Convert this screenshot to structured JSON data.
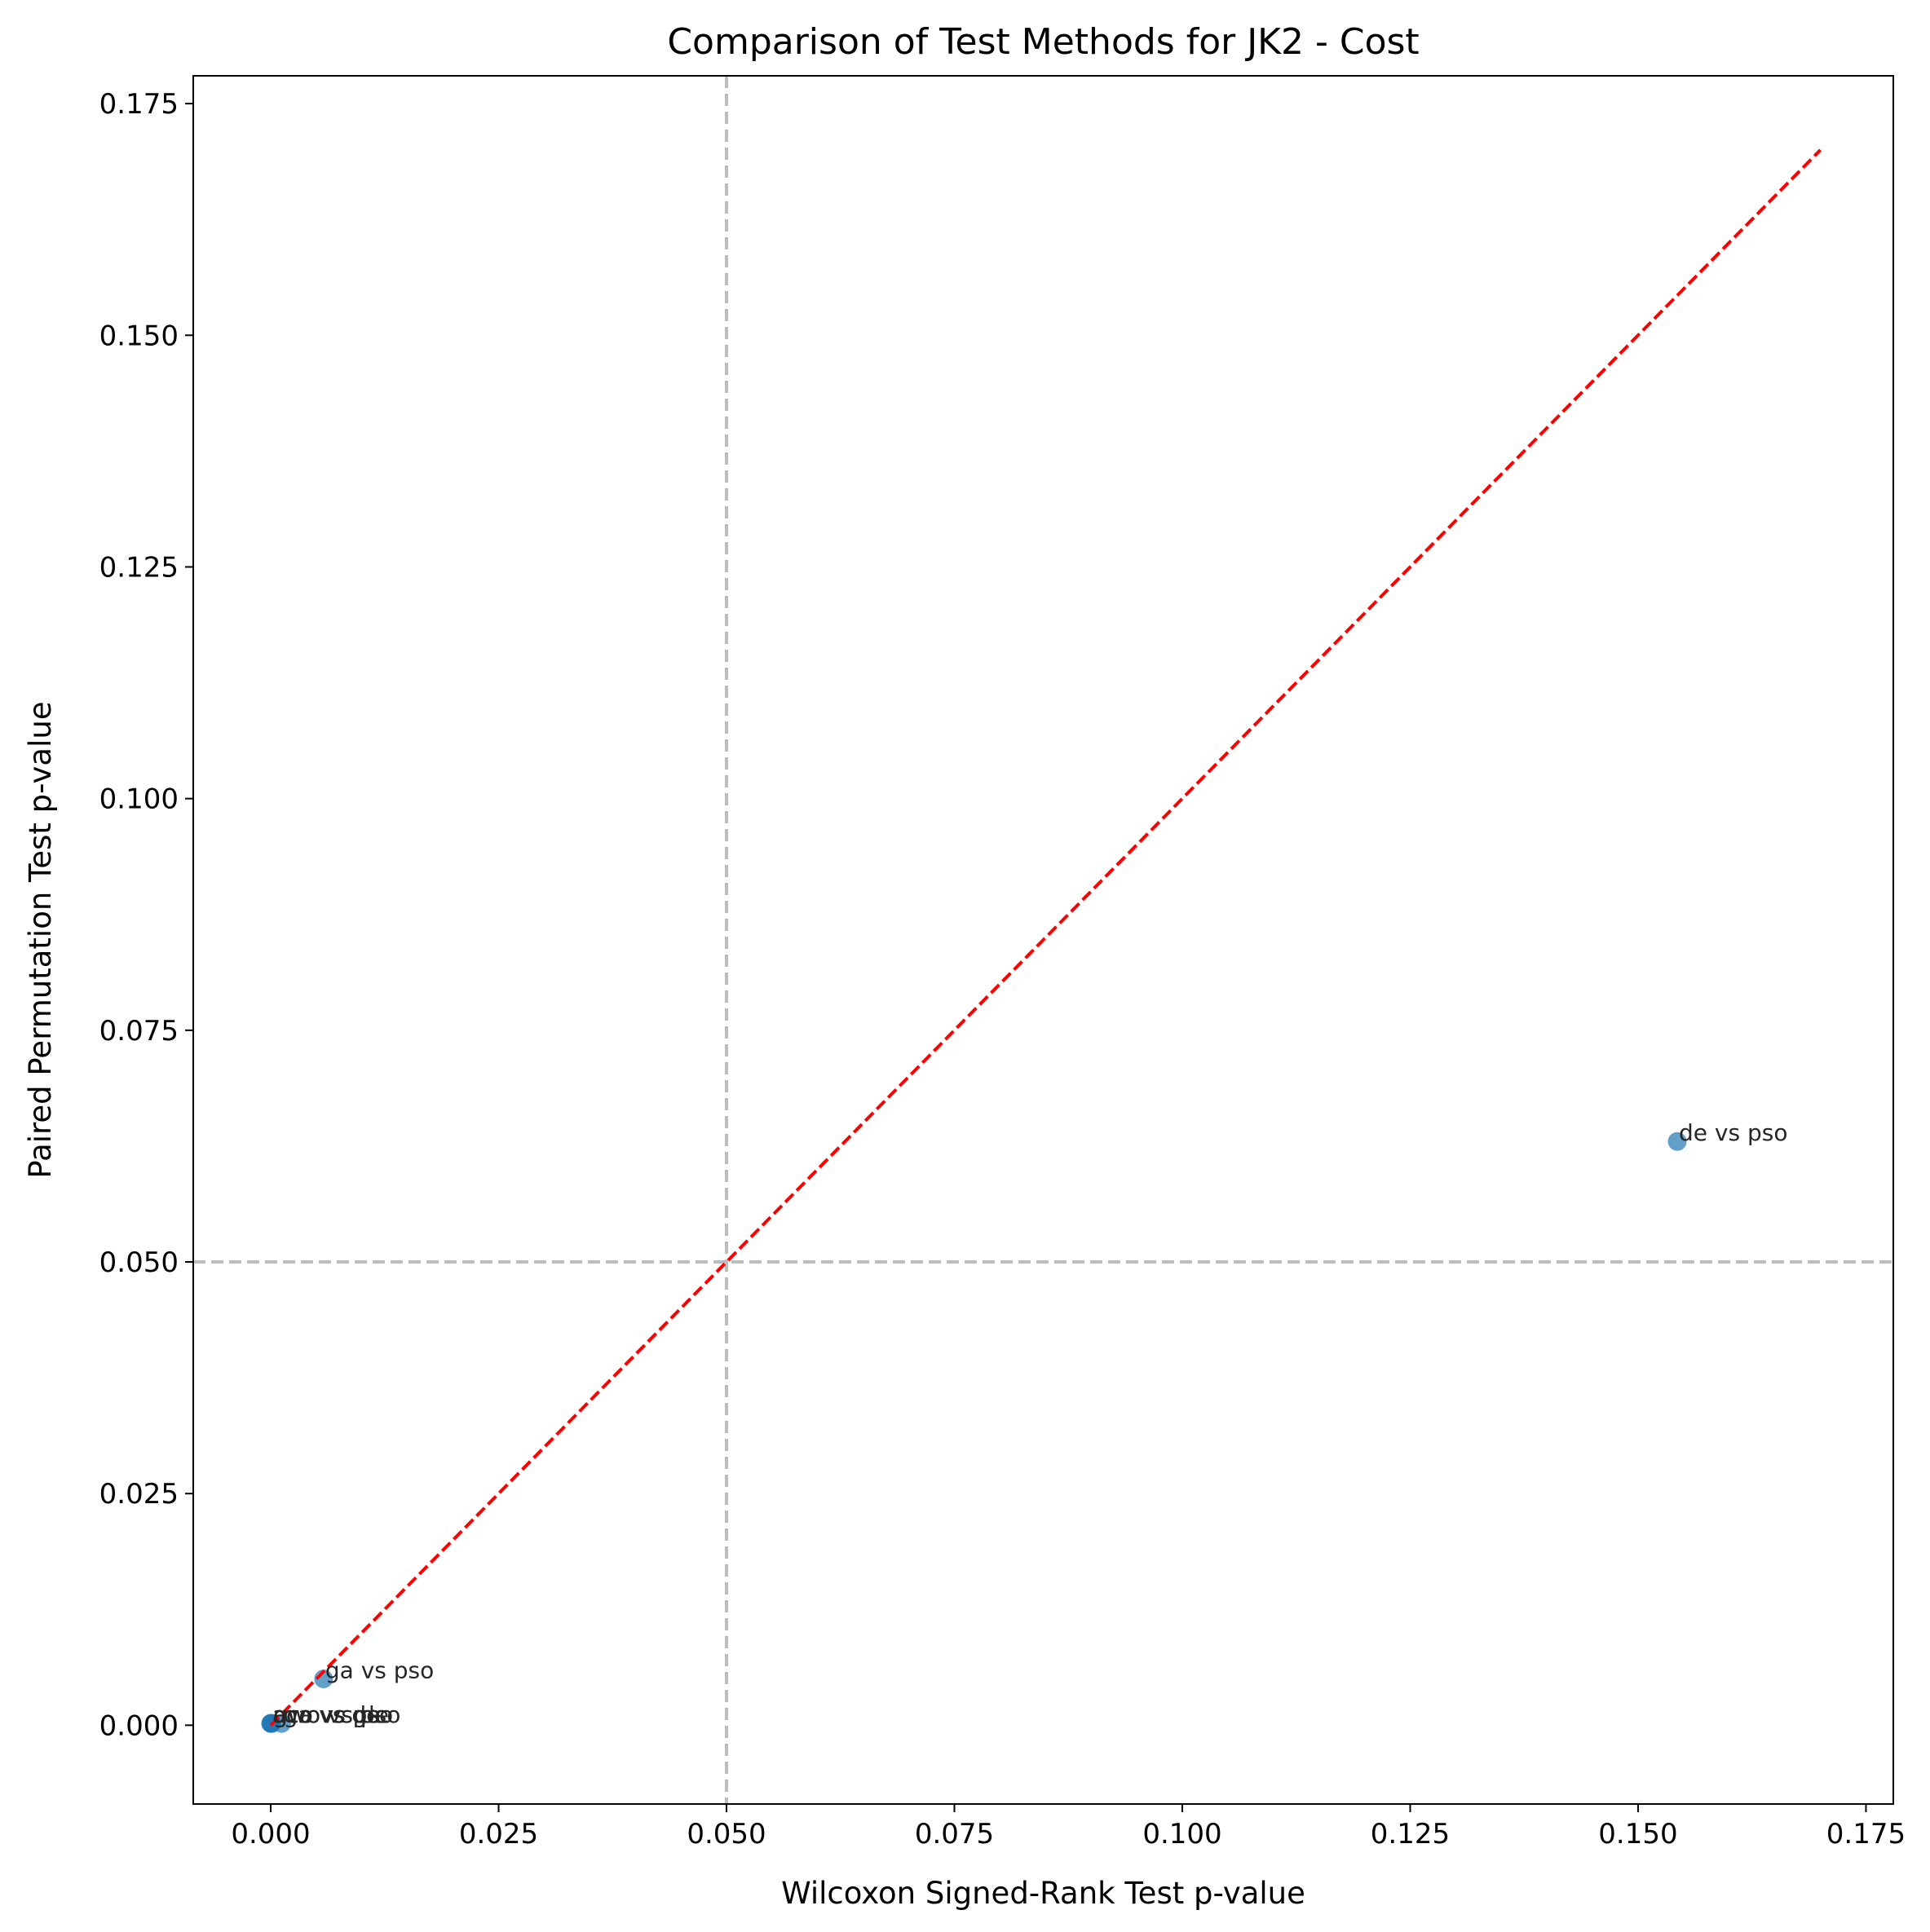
{
  "chart_data": {
    "type": "scatter",
    "title": "Comparison of Test Methods for JK2 - Cost",
    "xlabel": "Wilcoxon Signed-Rank Test p-value",
    "ylabel": "Paired Permutation Test p-value",
    "xlim": [
      -0.0085,
      0.178
    ],
    "ylim": [
      -0.0085,
      0.178
    ],
    "xticks": [
      "0.000",
      "0.025",
      "0.050",
      "0.075",
      "0.100",
      "0.125",
      "0.150",
      "0.175"
    ],
    "yticks": [
      "0.000",
      "0.025",
      "0.050",
      "0.075",
      "0.100",
      "0.125",
      "0.150",
      "0.175"
    ],
    "grid": false,
    "points": [
      {
        "label": "de vs pso",
        "x": 0.1543,
        "y": 0.063
      },
      {
        "label": "ga vs pso",
        "x": 0.0058,
        "y": 0.005
      },
      {
        "label": "aco vs ga",
        "x": 0.0,
        "y": 0.0002
      },
      {
        "label": "gwo vs de",
        "x": 0.0001,
        "y": 0.0002
      },
      {
        "label": "ga vs de",
        "x": 0.0012,
        "y": 0.0002
      },
      {
        "label": "aco vs pso",
        "x": 0.0,
        "y": 0.0002
      },
      {
        "label": "gwo vs pso",
        "x": 0.0001,
        "y": 0.0002
      }
    ],
    "diagonal": {
      "x": [
        0.0,
        0.17
      ],
      "y": [
        0.0,
        0.17
      ],
      "color": "#ff0000",
      "style": "dashed"
    },
    "reference_lines": {
      "x": 0.05,
      "y": 0.05,
      "color": "#bdbdbd",
      "style": "dashed"
    },
    "point_color": "#1f77b4"
  }
}
